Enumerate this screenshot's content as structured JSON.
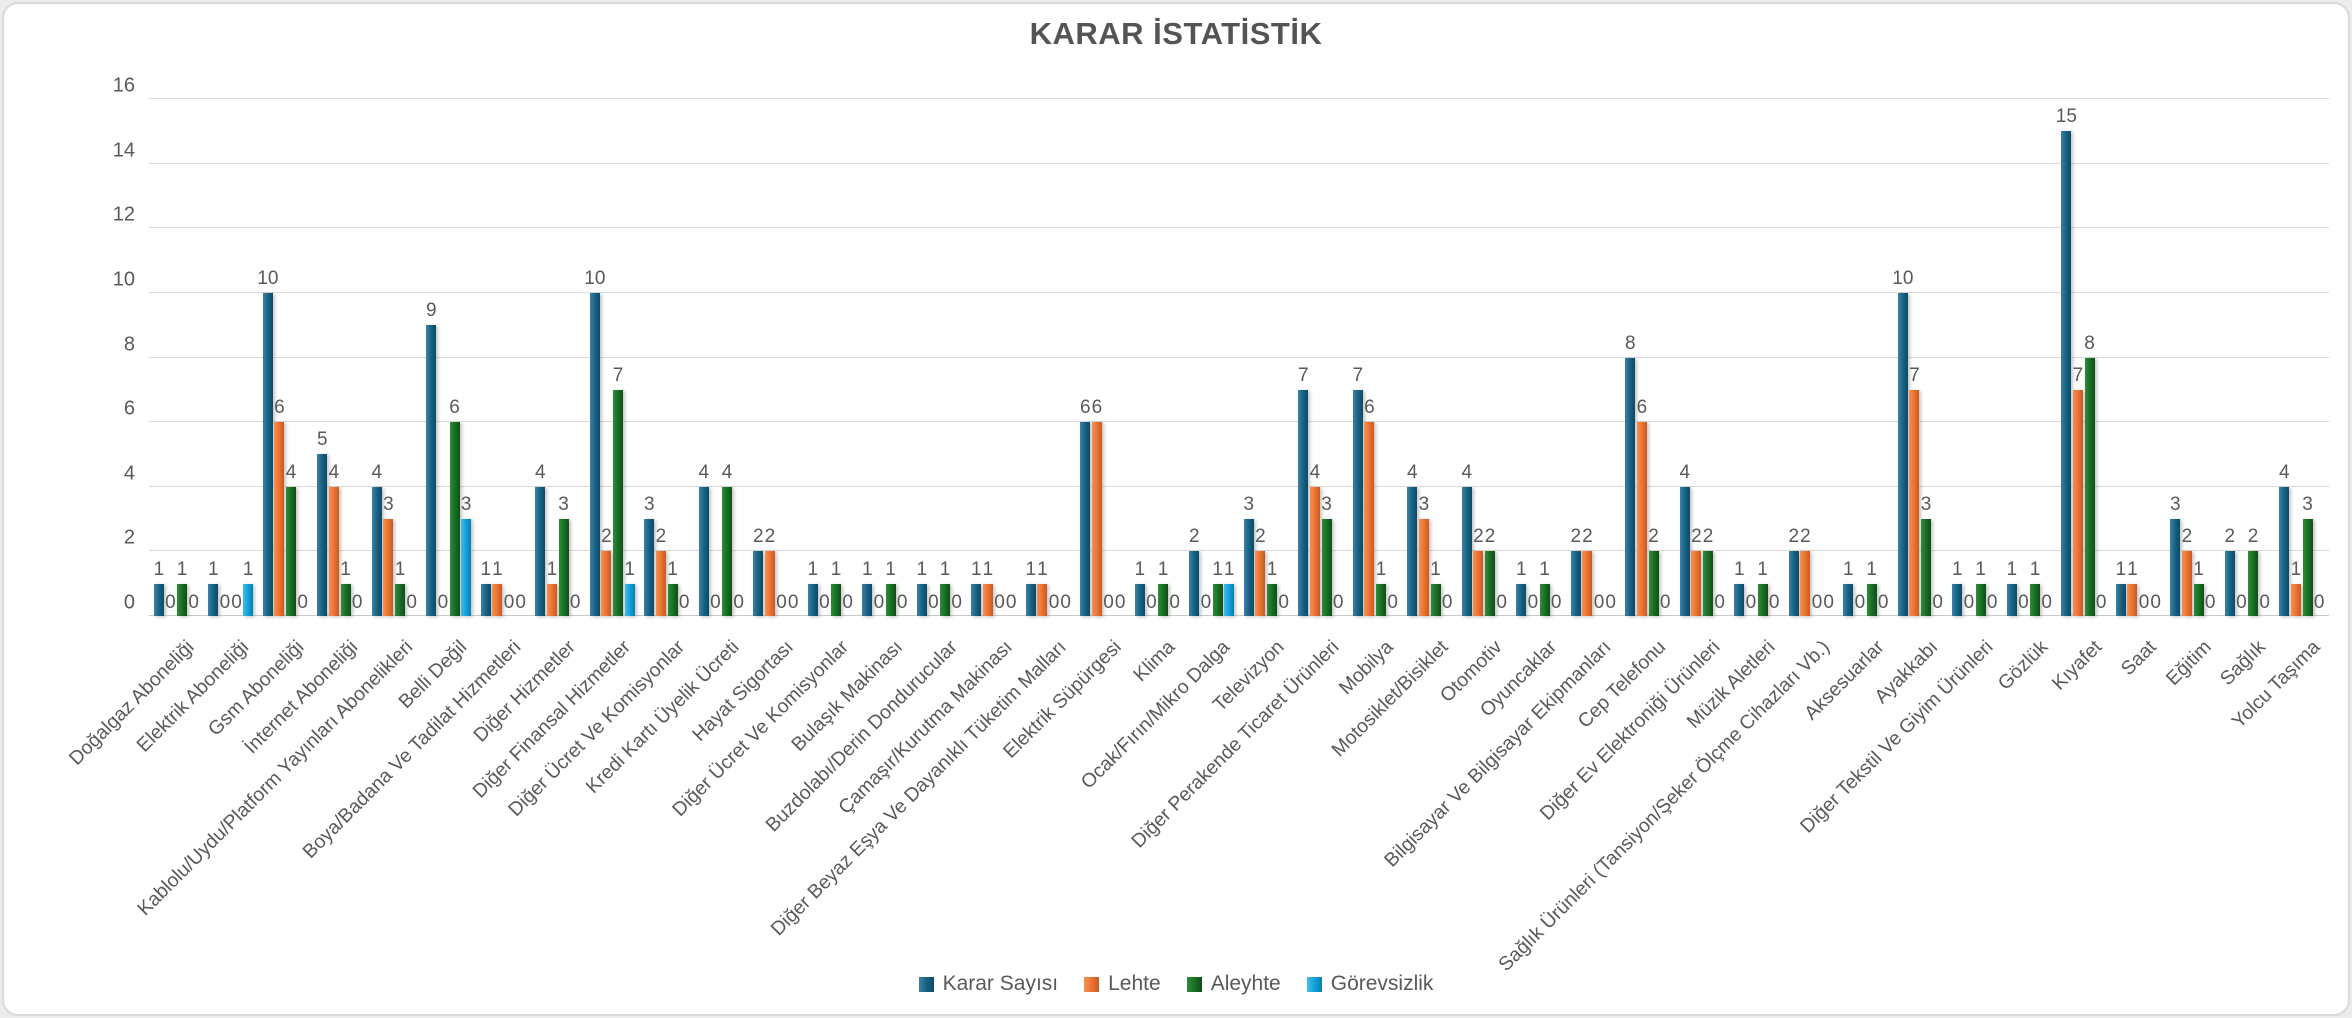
{
  "chart_data": {
    "type": "bar",
    "title": "KARAR İSTATİSTİK",
    "xlabel": "",
    "ylabel": "",
    "ylim": [
      0,
      16
    ],
    "ytick_step": 2,
    "ytick_labels": [
      "0",
      "2",
      "4",
      "6",
      "8",
      "10",
      "12",
      "14",
      "16"
    ],
    "grid": true,
    "data_labels": true,
    "legend_position": "bottom",
    "colors": {
      "grid": "#D9D9D9",
      "axis_text": "#595959",
      "title_text": "#545454"
    },
    "categories": [
      "Doğalgaz Aboneliği",
      "Elektrik Aboneliği",
      "Gsm Aboneliği",
      "İnternet Aboneliği",
      "Kablolu/Uydu/Platform Yayınları Abonelikleri",
      "Belli Değil",
      "Boya/Badana Ve Tadilat Hizmetleri",
      "Diğer Hizmetler",
      "Diğer Finansal Hizmetler",
      "Diğer Ücret Ve Komisyonlar",
      "Kredi Kartı Üyelik Ücreti",
      "Hayat Sigortası",
      "Diğer Ücret Ve Komisyonlar",
      "Bulaşık Makinası",
      "Buzdolabı/Derin Dondurucular",
      "Çamaşır/Kurutma Makinası",
      "Diğer Beyaz Eşya Ve Dayanıklı Tüketim Malları",
      "Elektrik Süpürgesi",
      "Klima",
      "Ocak/Fırın/Mikro Dalga",
      "Televizyon",
      "Diğer Perakende Ticaret Ürünleri",
      "Mobilya",
      "Motosiklet/Bisiklet",
      "Otomotiv",
      "Oyuncaklar",
      "Bilgisayar Ve Bilgisayar Ekipmanları",
      "Cep Telefonu",
      "Diğer Ev Elektroniği Ürünleri",
      "Müzik Aletleri",
      "Sağlık Ürünleri (Tansiyon/Şeker Ölçme Cihazları Vb.)",
      "Aksesuarlar",
      "Ayakkabı",
      "Diğer Tekstil Ve Giyim Ürünleri",
      "Gözlük",
      "Kıyafet",
      "Saat",
      "Eğitim",
      "Sağlık",
      "Yolcu Taşıma"
    ],
    "series": [
      {
        "name": "Karar Sayısı",
        "color": "#156082",
        "color_light": "#3E80A4",
        "color_dark": "#0E4A66",
        "values": [
          1,
          1,
          10,
          5,
          4,
          9,
          1,
          4,
          10,
          3,
          4,
          2,
          1,
          1,
          1,
          1,
          1,
          6,
          1,
          2,
          3,
          7,
          7,
          4,
          4,
          1,
          2,
          8,
          4,
          1,
          2,
          1,
          10,
          1,
          1,
          15,
          1,
          3,
          2,
          4
        ]
      },
      {
        "name": "Lehte",
        "color": "#E97132",
        "color_light": "#F6914F",
        "color_dark": "#C85A1F",
        "values": [
          0,
          0,
          6,
          4,
          3,
          0,
          1,
          1,
          2,
          2,
          0,
          2,
          0,
          0,
          0,
          1,
          1,
          6,
          0,
          0,
          2,
          4,
          6,
          3,
          2,
          0,
          2,
          6,
          2,
          0,
          2,
          0,
          7,
          0,
          0,
          7,
          1,
          2,
          0,
          1
        ]
      },
      {
        "name": "Aleyhte",
        "color": "#196B24",
        "color_light": "#2E8C3C",
        "color_dark": "#0F4F18",
        "values": [
          1,
          0,
          4,
          1,
          1,
          6,
          0,
          3,
          7,
          1,
          4,
          0,
          1,
          1,
          1,
          0,
          0,
          0,
          1,
          1,
          1,
          3,
          1,
          1,
          2,
          1,
          0,
          2,
          2,
          1,
          0,
          1,
          3,
          1,
          1,
          8,
          0,
          1,
          2,
          3
        ]
      },
      {
        "name": "Görevsizlik",
        "color": "#0F9ED5",
        "color_light": "#45BCEC",
        "color_dark": "#0A7FAD",
        "values": [
          0,
          1,
          0,
          0,
          0,
          3,
          0,
          0,
          1,
          0,
          0,
          0,
          0,
          0,
          0,
          0,
          0,
          0,
          0,
          1,
          0,
          0,
          0,
          0,
          0,
          0,
          0,
          0,
          0,
          0,
          0,
          0,
          0,
          0,
          0,
          0,
          0,
          0,
          0,
          0
        ]
      }
    ]
  }
}
